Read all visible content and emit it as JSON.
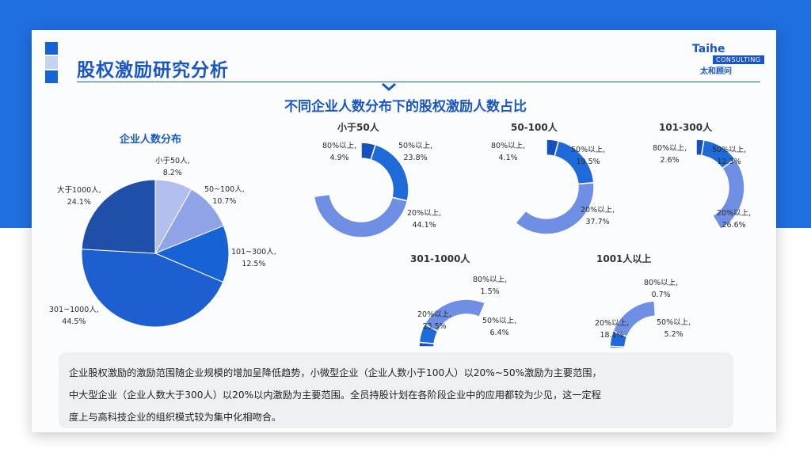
{
  "header": {
    "title": "股权激励研究分析",
    "subtitle": "不同企业人数分布下的股权激励人数占比"
  },
  "logo": {
    "name": "Taihe",
    "tag": "CONSULTING",
    "cn": "太和顾问"
  },
  "colors": {
    "blue_dark": "#1f4fa8",
    "blue_mid": "#1763d6",
    "blue_light": "#8fa3e6",
    "blue_pale": "#b3c0ef",
    "donut_dark": "#1550be",
    "donut_mid": "#1f6ad9",
    "donut_light": "#6e8fe3"
  },
  "chart_data": [
    {
      "type": "pie",
      "title": "企业人数分布",
      "categories": [
        "小于50人",
        "50~100人",
        "101~300人",
        "301~1000人",
        "大于1000人"
      ],
      "values": [
        8.2,
        10.7,
        12.5,
        44.5,
        24.1
      ],
      "labels": [
        "小于50人,",
        "50~100人,",
        "101~300人,",
        "301~1000人,",
        "大于1000人,"
      ],
      "value_labels": [
        "8.2%",
        "10.7%",
        "12.5%",
        "44.5%",
        "24.1%"
      ]
    },
    {
      "type": "pie",
      "title": "小于50人",
      "categories": [
        "80%以上",
        "50%以上",
        "20%以上"
      ],
      "values": [
        4.9,
        23.8,
        44.1
      ],
      "labels": [
        "80%以上,",
        "50%以上,",
        "20%以上,"
      ],
      "value_labels": [
        "4.9%",
        "23.8%",
        "44.1%"
      ]
    },
    {
      "type": "pie",
      "title": "50-100人",
      "categories": [
        "80%以上",
        "50%以上",
        "20%以上"
      ],
      "values": [
        4.1,
        19.5,
        37.7
      ],
      "labels": [
        "80%以上,",
        "50%以上,",
        "20%以上,"
      ],
      "value_labels": [
        "4.1%",
        "19.5%",
        "37.7%"
      ]
    },
    {
      "type": "pie",
      "title": "101-300人",
      "categories": [
        "80%以上",
        "50%以上",
        "20%以上"
      ],
      "values": [
        2.6,
        12.3,
        26.6
      ],
      "labels": [
        "80%以上,",
        "50%以上,",
        "20%以上,"
      ],
      "value_labels": [
        "2.6%",
        "12.3%",
        "26.6%"
      ]
    },
    {
      "type": "pie",
      "title": "301-1000人",
      "categories": [
        "80%以上",
        "50%以上",
        "20%以上"
      ],
      "values": [
        1.5,
        6.4,
        23.5
      ],
      "labels": [
        "80%以上,",
        "50%以上,",
        "20%以上,"
      ],
      "value_labels": [
        "1.5%",
        "6.4%",
        "23.5%"
      ]
    },
    {
      "type": "pie",
      "title": "1001人以上",
      "categories": [
        "80%以上",
        "50%以上",
        "20%以上"
      ],
      "values": [
        0.7,
        5.2,
        18.1
      ],
      "labels": [
        "80%以上,",
        "50%以上,",
        "20%以上,"
      ],
      "value_labels": [
        "0.7%",
        "5.2%",
        "18.1%"
      ]
    }
  ],
  "note": {
    "lines": [
      "企业股权激励的激励范围随企业规模的增加呈降低趋势，小微型企业（企业人数小于100人）以20%~50%激励为主要范围，",
      "中大型企业（企业人数大于300人）以20%以内激励为主要范围。全员持股计划在各阶段企业中的应用都较为少见，这一定程",
      "度上与高科技企业的组织模式较为集中化相吻合。"
    ]
  }
}
